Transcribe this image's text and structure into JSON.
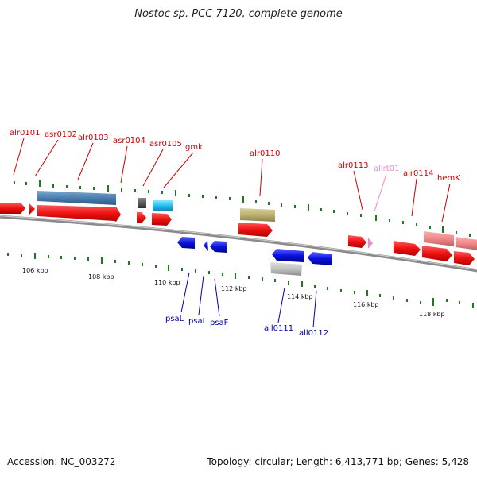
{
  "title": "Nostoc sp. PCC 7120, complete genome",
  "footer": {
    "accession": "Accession: NC_003272",
    "topology": "Topology: circular; Length: 6,413,771 bp; Genes: 5,428"
  },
  "colors": {
    "background": "#ffffff",
    "backbone": "#8a8a8a",
    "tick": "#1f7a1f",
    "top_label": "#cc0000",
    "bottom_label": "#0000aa",
    "trna_label": "#ee88cc",
    "forward_gene": "#ee1111",
    "reverse_gene": "#0a12dd"
  },
  "scale": {
    "unit": "kbp",
    "labels": [
      "106 kbp",
      "108 kbp",
      "110 kbp",
      "112 kbp",
      "114 kbp",
      "116 kbp",
      "118 kbp"
    ]
  },
  "genes_top": [
    {
      "name": "alr0101",
      "color": "#cc0000"
    },
    {
      "name": "asr0102",
      "color": "#cc0000"
    },
    {
      "name": "alr0103",
      "color": "#cc0000"
    },
    {
      "name": "asr0104",
      "color": "#cc0000"
    },
    {
      "name": "asr0105",
      "color": "#cc0000"
    },
    {
      "name": "gmk",
      "color": "#cc0000"
    },
    {
      "name": "alr0110",
      "color": "#cc0000"
    },
    {
      "name": "alr0113",
      "color": "#cc0000"
    },
    {
      "name": "allrt01",
      "color": "#ee88cc"
    },
    {
      "name": "alr0114",
      "color": "#cc0000"
    },
    {
      "name": "hemK",
      "color": "#cc0000"
    }
  ],
  "genes_bottom": [
    {
      "name": "psaL",
      "color": "#0000aa"
    },
    {
      "name": "psaI",
      "color": "#0000aa"
    },
    {
      "name": "psaF",
      "color": "#0000aa"
    },
    {
      "name": "all0111",
      "color": "#0000aa"
    },
    {
      "name": "all0112",
      "color": "#0000aa"
    }
  ]
}
